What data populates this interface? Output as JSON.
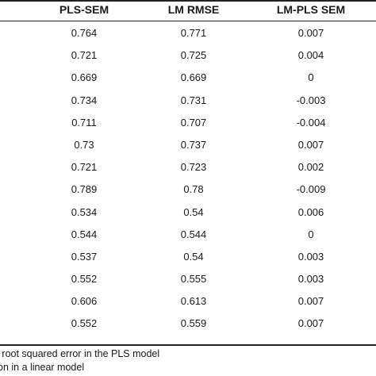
{
  "table": {
    "headers": [
      "PLS-SEM",
      "LM RMSE",
      "LM-PLS SEM"
    ],
    "rows": [
      [
        "0.764",
        "0.771",
        "0.007"
      ],
      [
        "0.721",
        "0.725",
        "0.004"
      ],
      [
        "0.669",
        "0.669",
        "0"
      ],
      [
        "0.734",
        "0.731",
        "-0.003"
      ],
      [
        "0.711",
        "0.707",
        "-0.004"
      ],
      [
        "0.73",
        "0.737",
        "0.007"
      ],
      [
        "0.721",
        "0.723",
        "0.002"
      ],
      [
        "0.789",
        "0.78",
        "-0.009"
      ],
      [
        "0.534",
        "0.54",
        "0.006"
      ],
      [
        "0.544",
        "0.544",
        "0"
      ],
      [
        "0.537",
        "0.54",
        "0.003"
      ],
      [
        "0.552",
        "0.555",
        "0.003"
      ],
      [
        "0.606",
        "0.613",
        "0.007"
      ],
      [
        "0.552",
        "0.559",
        "0.007"
      ]
    ]
  },
  "notes": [
    "e root squared error in the PLS model",
    "on in a linear model"
  ]
}
